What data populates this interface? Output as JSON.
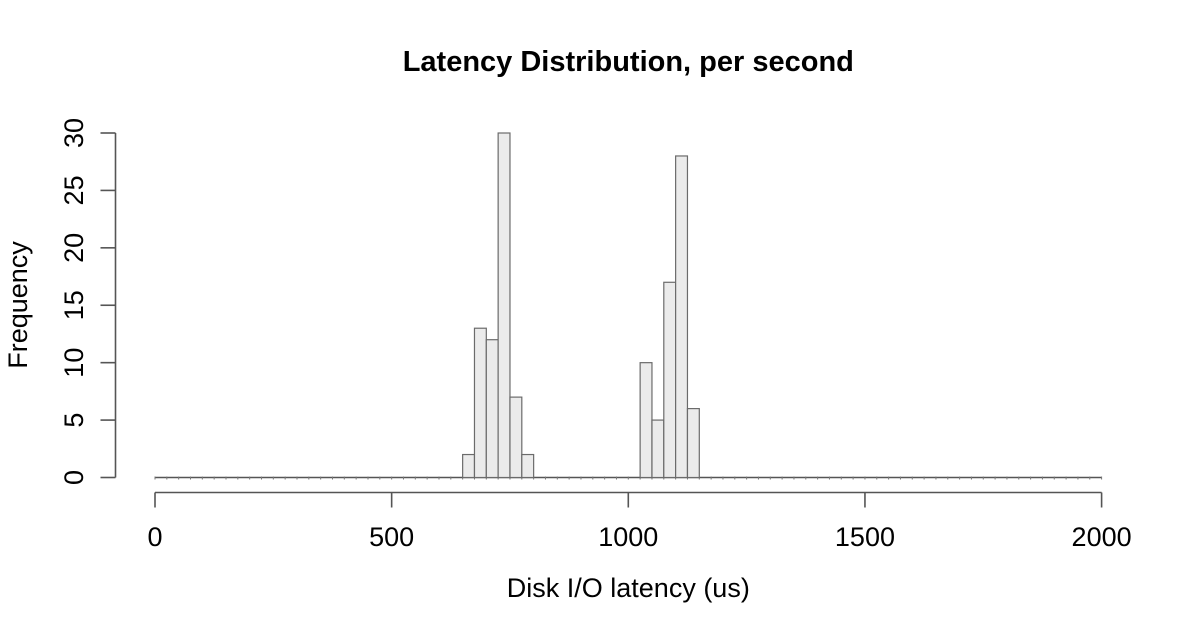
{
  "page": {
    "background": "#ffffff"
  },
  "chart_data": {
    "type": "bar",
    "chart_kind": "histogram",
    "title": "Latency Distribution, per second",
    "xlabel": "Disk I/O latency (us)",
    "ylabel": "Frequency",
    "xlim": [
      0,
      2000
    ],
    "ylim": [
      0,
      30
    ],
    "x_ticks": [
      0,
      500,
      1000,
      1500,
      2000
    ],
    "y_ticks": [
      0,
      5,
      10,
      15,
      20,
      25,
      30
    ],
    "bin_width": 25,
    "bins_range": [
      0,
      2000
    ],
    "bins": [
      {
        "start": 650,
        "end": 675,
        "count": 2
      },
      {
        "start": 675,
        "end": 700,
        "count": 13
      },
      {
        "start": 700,
        "end": 725,
        "count": 12
      },
      {
        "start": 725,
        "end": 750,
        "count": 30
      },
      {
        "start": 750,
        "end": 775,
        "count": 7
      },
      {
        "start": 775,
        "end": 800,
        "count": 2
      },
      {
        "start": 1025,
        "end": 1050,
        "count": 10
      },
      {
        "start": 1050,
        "end": 1075,
        "count": 5
      },
      {
        "start": 1075,
        "end": 1100,
        "count": 17
      },
      {
        "start": 1100,
        "end": 1125,
        "count": 28
      },
      {
        "start": 1125,
        "end": 1150,
        "count": 6
      }
    ],
    "zero_count_elsewhere": true,
    "grid": false,
    "legend": "none",
    "colors": {
      "bar_fill": "#ebebeb",
      "bar_border": "#6b6b6b",
      "axis": "#555555",
      "baseline": "#555555",
      "text": "#000000"
    }
  }
}
